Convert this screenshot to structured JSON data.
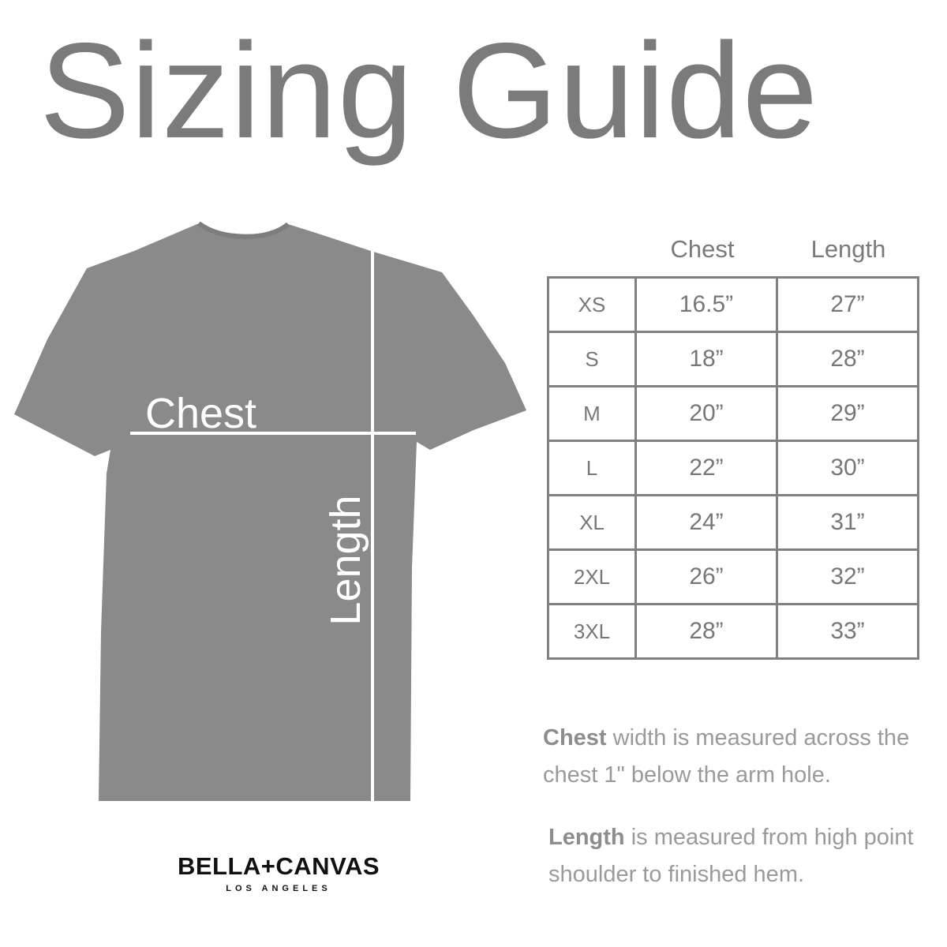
{
  "title": "Sizing Guide",
  "shirt": {
    "color": "#8a8a8a",
    "chest_label": "Chest",
    "length_label": "Length"
  },
  "table": {
    "headers": [
      "Chest",
      "Length"
    ],
    "rows": [
      {
        "size": "XS",
        "chest": "16.5”",
        "length": "27”"
      },
      {
        "size": "S",
        "chest": "18”",
        "length": "28”"
      },
      {
        "size": "M",
        "chest": "20”",
        "length": "29”"
      },
      {
        "size": "L",
        "chest": "22”",
        "length": "30”"
      },
      {
        "size": "XL",
        "chest": "24”",
        "length": "31”"
      },
      {
        "size": "2XL",
        "chest": "26”",
        "length": "32”"
      },
      {
        "size": "3XL",
        "chest": "28”",
        "length": "33”"
      }
    ]
  },
  "notes": {
    "chest_bold": "Chest",
    "chest_text": " width is measured across the chest 1\" below the arm hole.",
    "length_bold": "Length",
    "length_text": " is measured from high point shoulder to finished hem."
  },
  "logo": {
    "brand": "BELLA+CANVAS",
    "city": "LOS ANGELES"
  }
}
